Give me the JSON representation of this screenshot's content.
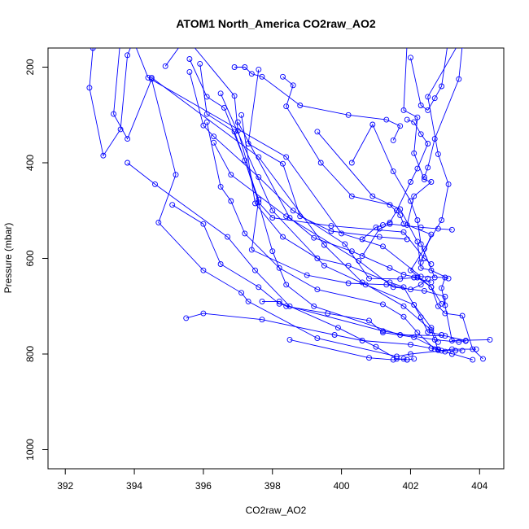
{
  "chart_data": {
    "type": "scatter",
    "title": "ATOM1 North_America CO2raw_AO2",
    "xlabel": "CO2raw_AO2",
    "ylabel": "Pressure (mbar)",
    "xlim": [
      391.5,
      404.7
    ],
    "ylim": [
      1040,
      160
    ],
    "y_inverted": true,
    "x_ticks": [
      392,
      394,
      396,
      398,
      400,
      402,
      404
    ],
    "y_ticks": [
      200,
      400,
      600,
      800,
      1000
    ],
    "colors": {
      "series": "#0000ff",
      "axis": "#000000"
    },
    "series": [
      {
        "points": [
          [
            392.8,
            160
          ],
          [
            392.7,
            243
          ],
          [
            393.1,
            385
          ],
          [
            393.6,
            330
          ],
          [
            393.8,
            175
          ],
          [
            394.0,
            140
          ]
        ]
      },
      {
        "points": [
          [
            393.6,
            140
          ],
          [
            393.4,
            298
          ],
          [
            393.8,
            350
          ],
          [
            394.5,
            225
          ],
          [
            395.2,
            425
          ],
          [
            394.7,
            525
          ],
          [
            396.0,
            625
          ],
          [
            397.1,
            672
          ],
          [
            397.3,
            690
          ],
          [
            399.3,
            767
          ],
          [
            401.6,
            805
          ],
          [
            402.0,
            800
          ],
          [
            402.9,
            793
          ],
          [
            403.2,
            790
          ],
          [
            403.9,
            790
          ]
        ]
      },
      {
        "points": [
          [
            393.8,
            400
          ],
          [
            394.6,
            445
          ],
          [
            396.7,
            555
          ],
          [
            397.5,
            625
          ],
          [
            398.5,
            700
          ],
          [
            399.9,
            745
          ],
          [
            401.0,
            785
          ],
          [
            401.6,
            810
          ],
          [
            401.9,
            812
          ],
          [
            402.1,
            810
          ]
        ]
      },
      {
        "points": [
          [
            394.0,
            150
          ],
          [
            394.4,
            222
          ],
          [
            398.4,
            388
          ],
          [
            400.0,
            548
          ],
          [
            401.2,
            575
          ],
          [
            402.3,
            638
          ],
          [
            403.0,
            640
          ],
          [
            402.9,
            662
          ],
          [
            403.2,
            772
          ],
          [
            404.3,
            770
          ]
        ]
      },
      {
        "points": [
          [
            394.5,
            222
          ],
          [
            397.6,
            388
          ],
          [
            399.5,
            572
          ],
          [
            400.6,
            650
          ],
          [
            401.8,
            700
          ],
          [
            402.6,
            750
          ],
          [
            402.8,
            792
          ],
          [
            403.3,
            793
          ],
          [
            403.5,
            793
          ]
        ]
      },
      {
        "points": [
          [
            394.9,
            198
          ],
          [
            395.5,
            138
          ],
          [
            396.9,
            260
          ],
          [
            397.0,
            333
          ],
          [
            398.0,
            585
          ],
          [
            398.4,
            655
          ],
          [
            399.2,
            700
          ],
          [
            401.7,
            760
          ],
          [
            403.0,
            762
          ],
          [
            403.6,
            772
          ]
        ]
      },
      {
        "points": [
          [
            395.1,
            488
          ],
          [
            396.0,
            528
          ],
          [
            396.5,
            612
          ],
          [
            397.6,
            660
          ],
          [
            398.2,
            695
          ],
          [
            401.2,
            752
          ],
          [
            402.7,
            770
          ],
          [
            403.4,
            775
          ],
          [
            403.6,
            773
          ]
        ]
      },
      {
        "points": [
          [
            395.6,
            210
          ],
          [
            396.0,
            322
          ],
          [
            396.3,
            345
          ],
          [
            397.6,
            430
          ],
          [
            398.6,
            500
          ],
          [
            400.1,
            570
          ],
          [
            400.8,
            642
          ],
          [
            401.7,
            643
          ],
          [
            402.1,
            640
          ],
          [
            402.6,
            650
          ]
        ]
      },
      {
        "points": [
          [
            395.9,
            193
          ],
          [
            396.1,
            298
          ],
          [
            396.9,
            335
          ],
          [
            397.6,
            477
          ],
          [
            397.4,
            582
          ],
          [
            399.0,
            635
          ],
          [
            400.2,
            652
          ],
          [
            401.3,
            655
          ],
          [
            402.0,
            665
          ],
          [
            402.3,
            655
          ],
          [
            402.5,
            642
          ]
        ]
      },
      {
        "points": [
          [
            395.5,
            725
          ],
          [
            396.0,
            715
          ],
          [
            397.7,
            728
          ],
          [
            399.8,
            760
          ],
          [
            400.6,
            772
          ],
          [
            402.0,
            780
          ],
          [
            402.6,
            788
          ],
          [
            403.0,
            795
          ],
          [
            403.8,
            812
          ]
        ]
      },
      {
        "points": [
          [
            395.6,
            183
          ],
          [
            396.1,
            262
          ],
          [
            396.6,
            285
          ],
          [
            397.2,
            395
          ],
          [
            397.6,
            483
          ],
          [
            398.0,
            515
          ],
          [
            399.7,
            532
          ],
          [
            401.8,
            545
          ],
          [
            402.4,
            600
          ],
          [
            402.6,
            612
          ]
        ]
      },
      {
        "points": [
          [
            396.1,
            315
          ],
          [
            396.5,
            450
          ],
          [
            396.8,
            480
          ],
          [
            397.2,
            548
          ],
          [
            398.2,
            620
          ],
          [
            399.3,
            665
          ],
          [
            401.2,
            696
          ],
          [
            401.8,
            722
          ],
          [
            402.2,
            755
          ],
          [
            402.7,
            790
          ]
        ]
      },
      {
        "points": [
          [
            396.3,
            358
          ],
          [
            396.8,
            425
          ],
          [
            398.4,
            512
          ],
          [
            400.5,
            605
          ],
          [
            401.5,
            660
          ],
          [
            402.4,
            668
          ],
          [
            403.0,
            680
          ],
          [
            403.0,
            698
          ]
        ]
      },
      {
        "points": [
          [
            396.5,
            255
          ],
          [
            398.0,
            500
          ],
          [
            399.5,
            615
          ],
          [
            400.7,
            655
          ],
          [
            402.1,
            697
          ],
          [
            402.6,
            745
          ],
          [
            402.8,
            775
          ]
        ]
      },
      {
        "points": [
          [
            396.9,
            200
          ],
          [
            397.2,
            200
          ],
          [
            397.4,
            214
          ],
          [
            397.7,
            220
          ],
          [
            398.8,
            280
          ],
          [
            400.2,
            300
          ],
          [
            401.3,
            310
          ],
          [
            401.7,
            323
          ],
          [
            401.5,
            353
          ]
        ]
      },
      {
        "points": [
          [
            397.1,
            300
          ],
          [
            397.5,
            485
          ],
          [
            398.3,
            555
          ],
          [
            399.3,
            600
          ],
          [
            400.2,
            615
          ],
          [
            401.4,
            650
          ],
          [
            401.8,
            660
          ],
          [
            402.3,
            723
          ],
          [
            402.5,
            754
          ],
          [
            402.9,
            760
          ]
        ]
      },
      {
        "points": [
          [
            397.0,
            315
          ],
          [
            398.5,
            515
          ],
          [
            399.2,
            557
          ],
          [
            400.3,
            585
          ],
          [
            401.4,
            620
          ],
          [
            401.8,
            634
          ],
          [
            402.2,
            640
          ],
          [
            402.6,
            660
          ],
          [
            402.9,
            695
          ]
        ]
      },
      {
        "points": [
          [
            397.6,
            205
          ],
          [
            397.3,
            360
          ],
          [
            398.3,
            402
          ],
          [
            398.8,
            512
          ],
          [
            399.7,
            543
          ],
          [
            401.1,
            555
          ],
          [
            401.9,
            560
          ]
        ]
      },
      {
        "points": [
          [
            397.7,
            690
          ],
          [
            398.2,
            690
          ],
          [
            398.4,
            700
          ],
          [
            399.6,
            715
          ],
          [
            400.8,
            730
          ],
          [
            401.2,
            755
          ],
          [
            402.1,
            765
          ],
          [
            402.8,
            790
          ],
          [
            403.2,
            800
          ]
        ]
      },
      {
        "points": [
          [
            398.3,
            220
          ],
          [
            398.6,
            238
          ],
          [
            398.4,
            282
          ],
          [
            399.4,
            400
          ],
          [
            400.3,
            470
          ],
          [
            401.4,
            488
          ],
          [
            401.7,
            510
          ],
          [
            401.8,
            528
          ]
        ]
      },
      {
        "points": [
          [
            398.5,
            770
          ],
          [
            400.8,
            808
          ],
          [
            401.5,
            812
          ],
          [
            401.8,
            810
          ],
          [
            401.9,
            812
          ]
        ]
      },
      {
        "points": [
          [
            399.3,
            335
          ],
          [
            400.9,
            470
          ],
          [
            401.7,
            497
          ],
          [
            402.2,
            565
          ],
          [
            402.3,
            620
          ],
          [
            402.6,
            625
          ],
          [
            403.1,
            642
          ]
        ]
      },
      {
        "points": [
          [
            400.3,
            400
          ],
          [
            400.9,
            320
          ],
          [
            401.5,
            418
          ],
          [
            402.0,
            480
          ],
          [
            402.2,
            520
          ],
          [
            402.3,
            570
          ],
          [
            402.7,
            640
          ]
        ]
      },
      {
        "points": [
          [
            400.6,
            595
          ],
          [
            401.1,
            538
          ],
          [
            401.4,
            528
          ],
          [
            402.3,
            535
          ],
          [
            402.8,
            538
          ],
          [
            403.2,
            540
          ]
        ]
      },
      {
        "points": [
          [
            401.8,
            130
          ],
          [
            401.9,
            150
          ],
          [
            401.8,
            290
          ],
          [
            402.2,
            305
          ],
          [
            402.1,
            380
          ],
          [
            402.4,
            435
          ],
          [
            402.6,
            440
          ],
          [
            402.1,
            470
          ],
          [
            401.9,
            530
          ],
          [
            402.6,
            550
          ],
          [
            402.3,
            608
          ]
        ]
      },
      {
        "points": [
          [
            402.0,
            180
          ],
          [
            402.3,
            280
          ],
          [
            402.5,
            290
          ],
          [
            402.7,
            265
          ],
          [
            402.9,
            240
          ],
          [
            403.1,
            140
          ],
          [
            403.5,
            155
          ],
          [
            403.4,
            225
          ],
          [
            402.7,
            350
          ],
          [
            402.5,
            410
          ],
          [
            402.4,
            430
          ]
        ]
      },
      {
        "points": [
          [
            403.4,
            150
          ],
          [
            402.5,
            262
          ],
          [
            402.8,
            382
          ],
          [
            403.1,
            445
          ],
          [
            402.9,
            520
          ],
          [
            402.4,
            580
          ],
          [
            402.0,
            625
          ],
          [
            402.6,
            660
          ],
          [
            402.8,
            700
          ],
          [
            403.0,
            715
          ],
          [
            403.5,
            720
          ],
          [
            403.8,
            790
          ],
          [
            404.1,
            810
          ]
        ]
      },
      {
        "points": [
          [
            401.9,
            310
          ],
          [
            402.1,
            315
          ],
          [
            402.3,
            340
          ],
          [
            402.5,
            360
          ],
          [
            402.2,
            412
          ],
          [
            402.0,
            440
          ],
          [
            401.6,
            500
          ],
          [
            401.4,
            525
          ],
          [
            401.2,
            530
          ],
          [
            401.0,
            535
          ],
          [
            400.6,
            560
          ]
        ]
      }
    ]
  }
}
